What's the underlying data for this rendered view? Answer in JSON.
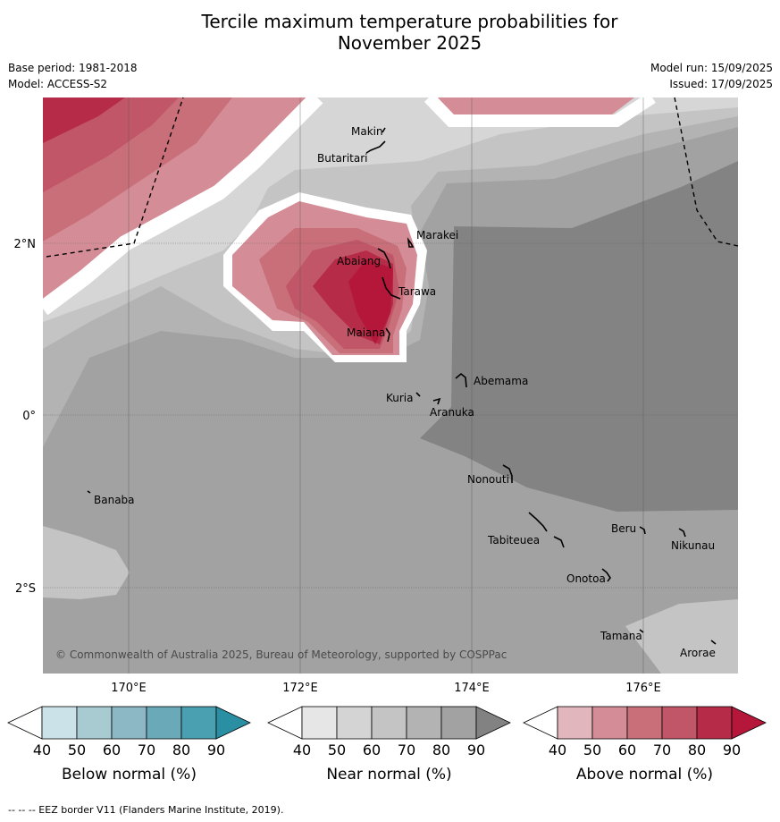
{
  "title": {
    "line1": "Tercile maximum temperature probabilities for",
    "line2": "November 2025"
  },
  "meta": {
    "base_period": "Base period: 1981-2018",
    "model": "Model: ACCESS-S2",
    "model_run": "Model run: 15/09/2025",
    "issued": "Issued: 17/09/2025"
  },
  "map": {
    "lon_ticks": [
      "170°E",
      "172°E",
      "174°E",
      "176°E"
    ],
    "lat_ticks": [
      "2°N",
      "0°",
      "2°S"
    ],
    "copyright": "© Commonwealth of Australia 2025, Bureau of Meteorology, supported by COSPPac",
    "places": [
      {
        "name": "Makin"
      },
      {
        "name": "Butaritari"
      },
      {
        "name": "Marakei"
      },
      {
        "name": "Abaiang"
      },
      {
        "name": "Tarawa"
      },
      {
        "name": "Maiana"
      },
      {
        "name": "Abemama"
      },
      {
        "name": "Kuria"
      },
      {
        "name": "Aranuka"
      },
      {
        "name": "Nonouti"
      },
      {
        "name": "Banaba"
      },
      {
        "name": "Beru"
      },
      {
        "name": "Nikunau"
      },
      {
        "name": "Tabiteuea"
      },
      {
        "name": "Onotoa"
      },
      {
        "name": "Tamana"
      },
      {
        "name": "Arorae"
      }
    ]
  },
  "colorbars": [
    {
      "label": "Below normal (%)",
      "ticks": [
        "40",
        "50",
        "60",
        "70",
        "80",
        "90"
      ],
      "colors": [
        "#ffffff",
        "#cbe2e8",
        "#a8cbd2",
        "#8bb8c4",
        "#6aa9b8",
        "#4aa0b1",
        "#2b8fa3"
      ]
    },
    {
      "label": "Near normal (%)",
      "ticks": [
        "40",
        "50",
        "60",
        "70",
        "80",
        "90"
      ],
      "colors": [
        "#ffffff",
        "#e6e6e6",
        "#d4d4d4",
        "#c4c4c4",
        "#b3b3b3",
        "#a2a2a2",
        "#828282"
      ]
    },
    {
      "label": "Above normal (%)",
      "ticks": [
        "40",
        "50",
        "60",
        "70",
        "80",
        "90"
      ],
      "colors": [
        "#ffffff",
        "#e2b6bd",
        "#d48d96",
        "#c86f7a",
        "#c05667",
        "#b62b47",
        "#b5173a"
      ]
    }
  ],
  "footer": "--  --  -- EEZ border V11 (Flanders Marine Institute, 2019)."
}
